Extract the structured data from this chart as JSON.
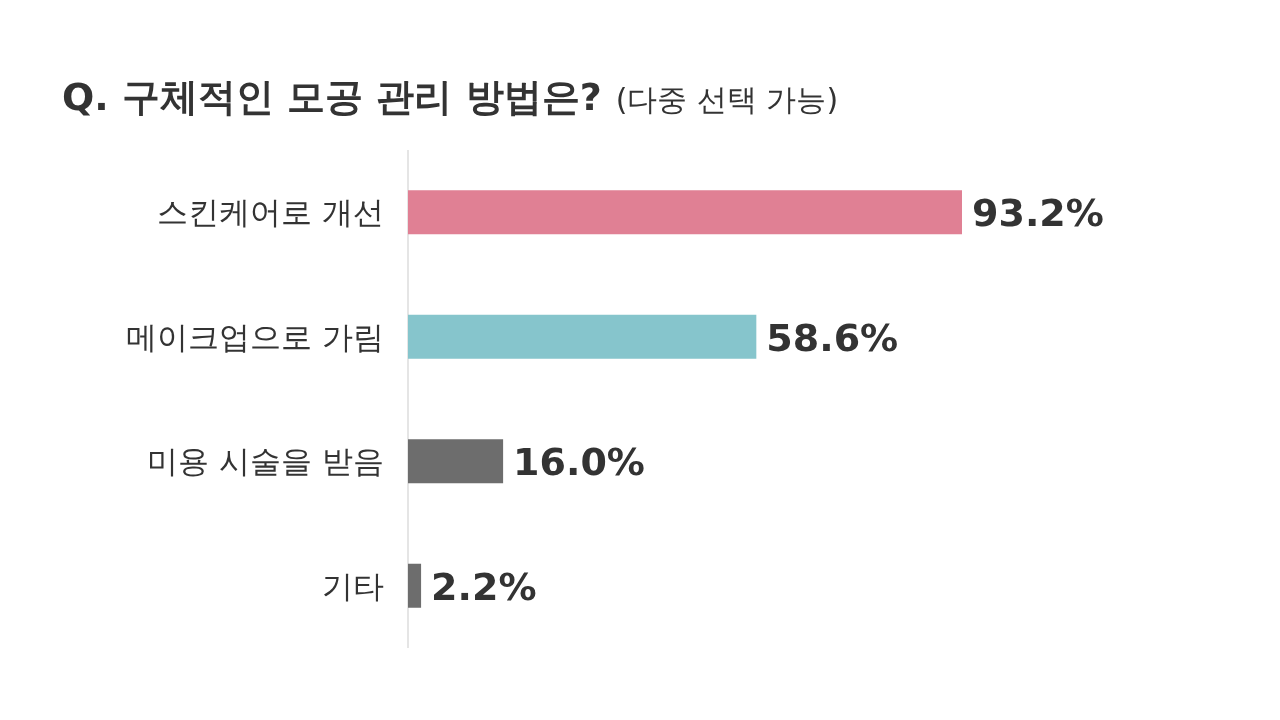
{
  "chart_data": {
    "type": "bar",
    "orientation": "horizontal",
    "title": "Q. 구체적인 모공 관리 방법은?",
    "subtitle": "(다중 선택 가능)",
    "categories": [
      "스킨케어로 개선",
      "메이크업으로 가림",
      "미용 시술을 받음",
      "기타"
    ],
    "values": [
      93.2,
      58.6,
      16.0,
      2.2
    ],
    "colors": [
      "#e08094",
      "#86c5cc",
      "#6d6d6d",
      "#6d6d6d"
    ],
    "value_labels": [
      "93.2%",
      "58.6%",
      "16.0%",
      "2.2%"
    ]
  }
}
